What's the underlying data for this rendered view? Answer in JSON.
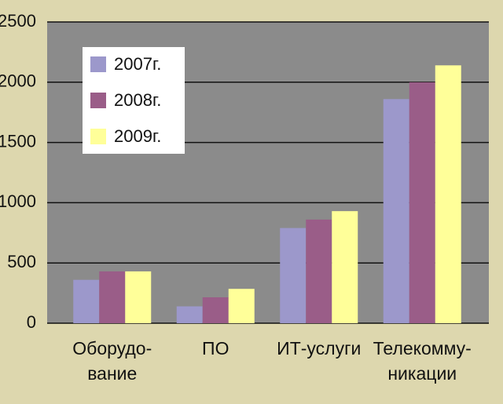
{
  "chart_data": {
    "type": "bar",
    "categories": [
      "Оборудо-\nвание",
      "ПО",
      "ИТ-услуги",
      "Телекомму-\nникации"
    ],
    "series": [
      {
        "name": "2007г.",
        "color": "#9c98cb",
        "values": [
          360,
          140,
          790,
          1860
        ]
      },
      {
        "name": "2008г.",
        "color": "#9a5d88",
        "values": [
          430,
          215,
          860,
          2000
        ]
      },
      {
        "name": "2009г.",
        "color": "#ffff99",
        "values": [
          430,
          285,
          930,
          2140
        ]
      }
    ],
    "ylim": [
      0,
      2500
    ],
    "yticks": [
      0,
      500,
      1000,
      1500,
      2000,
      2500
    ],
    "grid": true,
    "legend": "upper-left"
  }
}
